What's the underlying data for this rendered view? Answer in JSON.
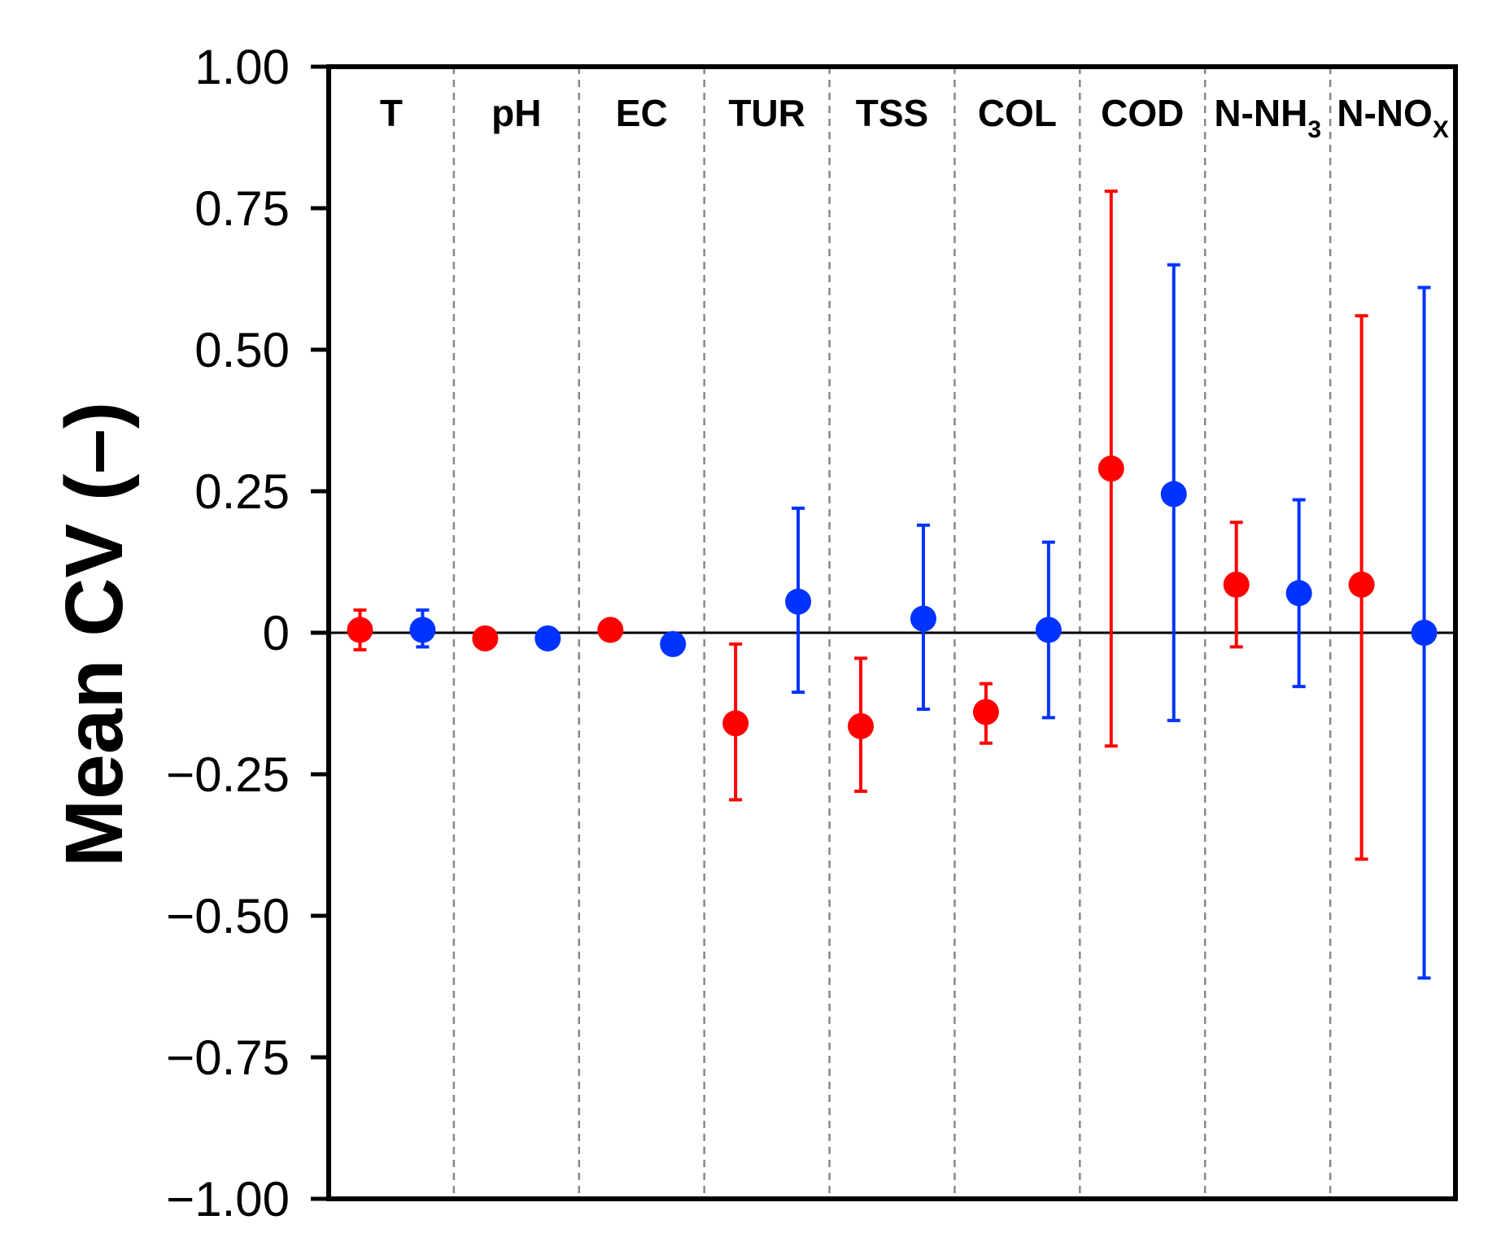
{
  "chart_data": {
    "type": "scatter",
    "title": "",
    "xlabel": "",
    "ylabel": "Mean CV (–)",
    "ylim": [
      -1.0,
      1.0
    ],
    "yticks": [
      1.0,
      0.75,
      0.5,
      0.25,
      0,
      -0.25,
      -0.5,
      -0.75,
      -1.0
    ],
    "ytick_labels": [
      "1.00",
      "0.75",
      "0.50",
      "0.25",
      "0",
      "−0.25",
      "−0.50",
      "−0.75",
      "−1.00"
    ],
    "categories": [
      {
        "label": "T",
        "sub": ""
      },
      {
        "label": "pH",
        "sub": ""
      },
      {
        "label": "EC",
        "sub": ""
      },
      {
        "label": "TUR",
        "sub": ""
      },
      {
        "label": "TSS",
        "sub": ""
      },
      {
        "label": "COL",
        "sub": ""
      },
      {
        "label": "COD",
        "sub": ""
      },
      {
        "label": "N-NH",
        "sub": "3"
      },
      {
        "label": "N-NO",
        "sub": "X"
      }
    ],
    "zero_line": 0,
    "series": [
      {
        "name": "red",
        "color": "#ff0000",
        "points": [
          {
            "mean": 0.005,
            "low": -0.03,
            "high": 0.04
          },
          {
            "mean": -0.01,
            "low": null,
            "high": null
          },
          {
            "mean": 0.005,
            "low": null,
            "high": null
          },
          {
            "mean": -0.16,
            "low": -0.295,
            "high": -0.02
          },
          {
            "mean": -0.165,
            "low": -0.28,
            "high": -0.045
          },
          {
            "mean": -0.14,
            "low": -0.195,
            "high": -0.09
          },
          {
            "mean": 0.29,
            "low": -0.2,
            "high": 0.78
          },
          {
            "mean": 0.085,
            "low": -0.025,
            "high": 0.195
          },
          {
            "mean": 0.085,
            "low": -0.4,
            "high": 0.56
          }
        ]
      },
      {
        "name": "blue",
        "color": "#0033ff",
        "points": [
          {
            "mean": 0.005,
            "low": -0.025,
            "high": 0.04
          },
          {
            "mean": -0.01,
            "low": null,
            "high": null
          },
          {
            "mean": -0.02,
            "low": null,
            "high": null
          },
          {
            "mean": 0.055,
            "low": -0.105,
            "high": 0.22
          },
          {
            "mean": 0.025,
            "low": -0.135,
            "high": 0.19
          },
          {
            "mean": 0.005,
            "low": -0.15,
            "high": 0.16
          },
          {
            "mean": 0.245,
            "low": -0.155,
            "high": 0.65
          },
          {
            "mean": 0.07,
            "low": -0.095,
            "high": 0.235
          },
          {
            "mean": 0.0,
            "low": -0.61,
            "high": 0.61
          }
        ]
      }
    ]
  }
}
